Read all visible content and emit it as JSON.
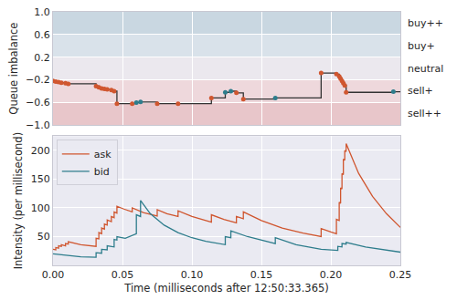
{
  "chart_data": [
    {
      "type": "line",
      "y_label": "Queue imbalance",
      "xlim": [
        0,
        0.25
      ],
      "xticks": [
        {
          "value": 0,
          "label": "0.00"
        },
        {
          "value": 0.05,
          "label": "0.05"
        },
        {
          "value": 0.1,
          "label": "0.10"
        },
        {
          "value": 0.15,
          "label": "0.15"
        },
        {
          "value": 0.2,
          "label": "0.20"
        },
        {
          "value": 0.25,
          "label": "0.25"
        }
      ],
      "ylim": [
        -1,
        1
      ],
      "yticks": [
        {
          "value": -1,
          "label": "−1.0"
        },
        {
          "value": -0.6,
          "label": "−0.6"
        },
        {
          "value": -0.2,
          "label": "−0.2"
        },
        {
          "value": 0.2,
          "label": "0.2"
        },
        {
          "value": 0.6,
          "label": "0.6"
        },
        {
          "value": 1,
          "label": "1.0"
        }
      ],
      "grid": true,
      "tick_labels": "y",
      "bands": [
        {
          "label": "buy++",
          "from": 0.6,
          "to": 1.0,
          "color": "#c9d7e1"
        },
        {
          "label": "buy+",
          "from": 0.2,
          "to": 0.6,
          "color": "#d9e2ea"
        },
        {
          "label": "neutral",
          "from": -0.2,
          "to": 0.2,
          "color": "#ebe8ee"
        },
        {
          "label": "sell+",
          "from": -0.6,
          "to": -0.2,
          "color": "#eed8dc"
        },
        {
          "label": "sell++",
          "from": -1.0,
          "to": -0.6,
          "color": "#e8c6ca"
        }
      ],
      "series": [
        {
          "type": "line",
          "line_style": "step",
          "color": "#333333",
          "x": [
            0,
            0.002,
            0.004,
            0.006,
            0.009,
            0.011,
            0.031,
            0.033,
            0.035,
            0.037,
            0.039,
            0.042,
            0.044,
            0.046,
            0.057,
            0.06,
            0.063,
            0.075,
            0.09,
            0.114,
            0.124,
            0.128,
            0.132,
            0.137,
            0.16,
            0.193,
            0.204,
            0.206,
            0.207,
            0.208,
            0.209,
            0.21,
            0.211,
            0.245,
            0.25
          ],
          "values": [
            -0.22,
            -0.23,
            -0.24,
            -0.25,
            -0.26,
            -0.27,
            -0.31,
            -0.33,
            -0.35,
            -0.36,
            -0.37,
            -0.38,
            -0.4,
            -0.62,
            -0.62,
            -0.6,
            -0.59,
            -0.62,
            -0.62,
            -0.52,
            -0.42,
            -0.4,
            -0.43,
            -0.54,
            -0.52,
            -0.08,
            -0.1,
            -0.14,
            -0.18,
            -0.22,
            -0.26,
            -0.3,
            -0.42,
            -0.41,
            -0.41
          ]
        },
        {
          "type": "scatter",
          "marker": "circle",
          "color": "#d0562f",
          "x": [
            0,
            0.002,
            0.004,
            0.006,
            0.009,
            0.011,
            0.031,
            0.033,
            0.035,
            0.037,
            0.039,
            0.042,
            0.044,
            0.046,
            0.057,
            0.075,
            0.09,
            0.114,
            0.132,
            0.137,
            0.193,
            0.204,
            0.206,
            0.207,
            0.208,
            0.209,
            0.21,
            0.211
          ],
          "values": [
            -0.22,
            -0.23,
            -0.24,
            -0.25,
            -0.26,
            -0.27,
            -0.31,
            -0.33,
            -0.35,
            -0.36,
            -0.37,
            -0.38,
            -0.4,
            -0.62,
            -0.62,
            -0.62,
            -0.62,
            -0.52,
            -0.43,
            -0.54,
            -0.08,
            -0.1,
            -0.14,
            -0.18,
            -0.22,
            -0.26,
            -0.3,
            -0.42
          ]
        },
        {
          "type": "scatter",
          "marker": "circle",
          "color": "#2e7d8c",
          "x": [
            0.06,
            0.063,
            0.124,
            0.128,
            0.16,
            0.245
          ],
          "values": [
            -0.6,
            -0.59,
            -0.42,
            -0.4,
            -0.52,
            -0.41
          ]
        }
      ]
    },
    {
      "type": "line",
      "x_label": "Time (milliseconds after 12:50:33.365)",
      "y_label": "Intensity (per millisecond)",
      "xlim": [
        0,
        0.25
      ],
      "xticks": [
        {
          "value": 0,
          "label": "0.00"
        },
        {
          "value": 0.05,
          "label": "0.05"
        },
        {
          "value": 0.1,
          "label": "0.10"
        },
        {
          "value": 0.15,
          "label": "0.15"
        },
        {
          "value": 0.2,
          "label": "0.20"
        },
        {
          "value": 0.25,
          "label": "0.25"
        }
      ],
      "ylim": [
        0,
        225
      ],
      "yticks": [
        50,
        100,
        150,
        200
      ],
      "grid": true,
      "legend": "upper left",
      "series": [
        {
          "name": "ask",
          "type": "line",
          "color": "#d0562f",
          "x": [
            0,
            0.002,
            0.002,
            0.004,
            0.004,
            0.006,
            0.006,
            0.009,
            0.009,
            0.011,
            0.011,
            0.02,
            0.031,
            0.031,
            0.033,
            0.033,
            0.035,
            0.035,
            0.037,
            0.037,
            0.039,
            0.039,
            0.042,
            0.042,
            0.044,
            0.044,
            0.046,
            0.046,
            0.051,
            0.057,
            0.057,
            0.065,
            0.075,
            0.075,
            0.082,
            0.09,
            0.09,
            0.1,
            0.114,
            0.114,
            0.123,
            0.132,
            0.132,
            0.137,
            0.137,
            0.15,
            0.165,
            0.18,
            0.193,
            0.193,
            0.2,
            0.204,
            0.204,
            0.206,
            0.206,
            0.207,
            0.207,
            0.208,
            0.208,
            0.209,
            0.209,
            0.21,
            0.21,
            0.211,
            0.211,
            0.22,
            0.23,
            0.24,
            0.25
          ],
          "values": [
            28,
            27,
            31,
            30,
            34,
            33,
            36,
            34,
            38,
            37,
            41,
            36,
            33,
            47,
            46,
            57,
            55,
            65,
            63,
            72,
            70,
            79,
            76,
            85,
            83,
            93,
            91,
            103,
            98,
            93,
            100,
            92,
            86,
            97,
            90,
            85,
            95,
            85,
            75,
            88,
            80,
            74,
            85,
            81,
            93,
            78,
            65,
            56,
            50,
            64,
            58,
            55,
            80,
            78,
            110,
            108,
            135,
            133,
            160,
            158,
            185,
            183,
            200,
            198,
            212,
            160,
            120,
            90,
            66
          ]
        },
        {
          "name": "bid",
          "type": "line",
          "color": "#2e7d8c",
          "x": [
            0,
            0.01,
            0.02,
            0.031,
            0.031,
            0.035,
            0.035,
            0.039,
            0.039,
            0.044,
            0.044,
            0.046,
            0.046,
            0.052,
            0.06,
            0.06,
            0.063,
            0.063,
            0.07,
            0.08,
            0.09,
            0.1,
            0.11,
            0.124,
            0.124,
            0.128,
            0.128,
            0.14,
            0.16,
            0.16,
            0.175,
            0.193,
            0.205,
            0.205,
            0.208,
            0.208,
            0.211,
            0.211,
            0.225,
            0.25
          ],
          "values": [
            20,
            17,
            15,
            14,
            22,
            21,
            28,
            27,
            34,
            32,
            45,
            44,
            50,
            47,
            55,
            88,
            85,
            113,
            90,
            70,
            57,
            48,
            42,
            36,
            50,
            48,
            60,
            50,
            38,
            48,
            36,
            28,
            26,
            33,
            32,
            38,
            37,
            40,
            32,
            23
          ]
        }
      ]
    }
  ]
}
